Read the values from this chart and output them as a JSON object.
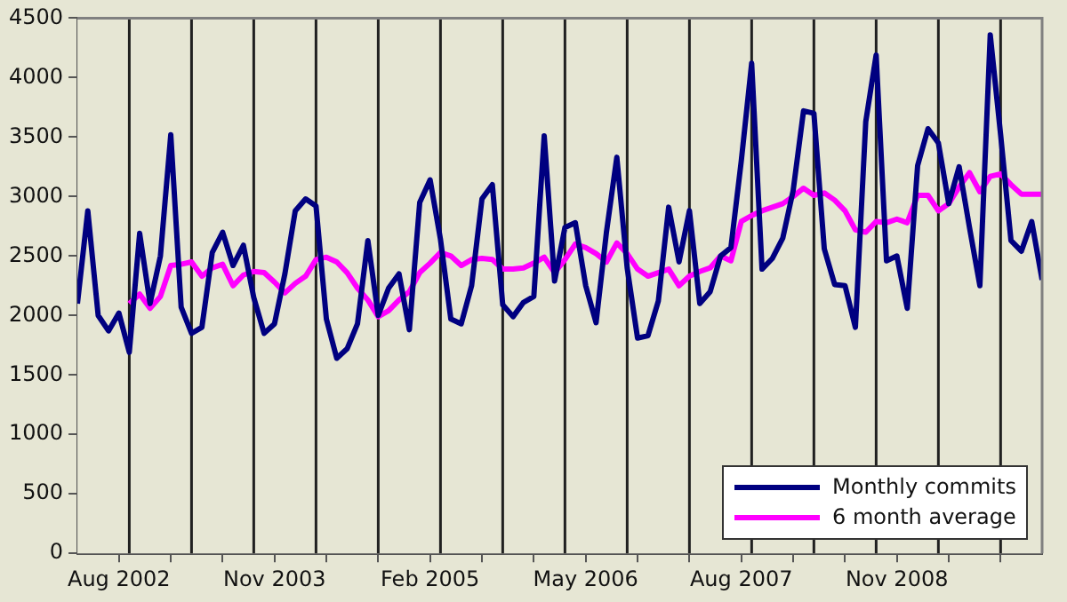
{
  "chart_data": {
    "type": "line",
    "xlim": [
      "2002-04",
      "2010-01"
    ],
    "xticks": [
      {
        "value": "2002-08",
        "label": "Aug 2002"
      },
      {
        "value": "2003-01",
        "label": null
      },
      {
        "value": "2003-06",
        "label": null
      },
      {
        "value": "2003-11",
        "label": "Nov 2003"
      },
      {
        "value": "2004-04",
        "label": null
      },
      {
        "value": "2004-09",
        "label": null
      },
      {
        "value": "2005-02",
        "label": "Feb 2005"
      },
      {
        "value": "2005-07",
        "label": null
      },
      {
        "value": "2005-12",
        "label": null
      },
      {
        "value": "2006-05",
        "label": "May 2006"
      },
      {
        "value": "2006-10",
        "label": null
      },
      {
        "value": "2007-03",
        "label": null
      },
      {
        "value": "2007-08",
        "label": "Aug 2007"
      },
      {
        "value": "2008-01",
        "label": null
      },
      {
        "value": "2008-06",
        "label": null
      },
      {
        "value": "2008-11",
        "label": "Nov 2008"
      },
      {
        "value": "2009-04",
        "label": null
      },
      {
        "value": "2009-09",
        "label": null
      }
    ],
    "ylim": [
      0,
      4500
    ],
    "yticks": [
      0,
      500,
      1000,
      1500,
      2000,
      2500,
      3000,
      3500,
      4000,
      4500
    ],
    "x": [
      "2002-04",
      "2002-05",
      "2002-06",
      "2002-07",
      "2002-08",
      "2002-09",
      "2002-10",
      "2002-11",
      "2002-12",
      "2003-01",
      "2003-02",
      "2003-03",
      "2003-04",
      "2003-05",
      "2003-06",
      "2003-07",
      "2003-08",
      "2003-09",
      "2003-10",
      "2003-11",
      "2003-12",
      "2004-01",
      "2004-02",
      "2004-03",
      "2004-04",
      "2004-05",
      "2004-06",
      "2004-07",
      "2004-08",
      "2004-09",
      "2004-10",
      "2004-11",
      "2004-12",
      "2005-01",
      "2005-02",
      "2005-03",
      "2005-04",
      "2005-05",
      "2005-06",
      "2005-07",
      "2005-08",
      "2005-09",
      "2005-10",
      "2005-11",
      "2005-12",
      "2006-01",
      "2006-02",
      "2006-03",
      "2006-04",
      "2006-05",
      "2006-06",
      "2006-07",
      "2006-08",
      "2006-09",
      "2006-10",
      "2006-11",
      "2006-12",
      "2007-01",
      "2007-02",
      "2007-03",
      "2007-04",
      "2007-05",
      "2007-06",
      "2007-07",
      "2007-08",
      "2007-09",
      "2007-10",
      "2007-11",
      "2007-12",
      "2008-01",
      "2008-02",
      "2008-03",
      "2008-04",
      "2008-05",
      "2008-06",
      "2008-07",
      "2008-08",
      "2008-09",
      "2008-10",
      "2008-11",
      "2008-12",
      "2009-01",
      "2009-02",
      "2009-03",
      "2009-04",
      "2009-05",
      "2009-06",
      "2009-07",
      "2009-08",
      "2009-09",
      "2009-10",
      "2009-11",
      "2009-12",
      "2010-01"
    ],
    "series": [
      {
        "name": "Monthly commits",
        "color": "#000080",
        "values": [
          2100,
          2880,
          2000,
          1870,
          2020,
          1690,
          2690,
          2100,
          2500,
          3520,
          2070,
          1850,
          1900,
          2530,
          2700,
          2420,
          2590,
          2150,
          1850,
          1930,
          2350,
          2880,
          2980,
          2920,
          1970,
          1640,
          1720,
          1930,
          2630,
          2000,
          2230,
          2350,
          1880,
          2950,
          3140,
          2640,
          1970,
          1930,
          2250,
          2980,
          3100,
          2090,
          1990,
          2110,
          2160,
          3510,
          2290,
          2740,
          2780,
          2250,
          1940,
          2700,
          3330,
          2400,
          1810,
          1830,
          2120,
          2910,
          2450,
          2880,
          2100,
          2200,
          2500,
          2570,
          3300,
          4120,
          2390,
          2480,
          2650,
          3050,
          3720,
          3700,
          2560,
          2260,
          2250,
          1900,
          3630,
          4190,
          2460,
          2500,
          2060,
          3260,
          3570,
          3450,
          2940,
          3250,
          2740,
          2250,
          4360,
          3520,
          2630,
          2540,
          2790,
          2300
        ]
      },
      {
        "name": "6 month average",
        "color": "#ff00ff",
        "values": [
          null,
          null,
          null,
          null,
          null,
          2100,
          2180,
          2060,
          2160,
          2420,
          2430,
          2450,
          2330,
          2400,
          2430,
          2250,
          2340,
          2370,
          2360,
          2280,
          2190,
          2270,
          2330,
          2470,
          2490,
          2450,
          2360,
          2230,
          2130,
          1990,
          2040,
          2130,
          2200,
          2360,
          2440,
          2530,
          2500,
          2420,
          2470,
          2480,
          2470,
          2390,
          2390,
          2400,
          2440,
          2490,
          2360,
          2470,
          2600,
          2570,
          2520,
          2450,
          2610,
          2520,
          2390,
          2330,
          2360,
          2390,
          2250,
          2330,
          2370,
          2400,
          2500,
          2460,
          2790,
          2840,
          2880,
          2910,
          2940,
          3000,
          3070,
          3010,
          3030,
          2970,
          2880,
          2720,
          2700,
          2790,
          2780,
          2810,
          2780,
          3010,
          3010,
          2880,
          2940,
          3080,
          3200,
          3040,
          3170,
          3190,
          3100,
          3020,
          3020,
          3020
        ]
      }
    ],
    "ref_lines": [
      {
        "axis": "x",
        "value": "2002-09",
        "color": "#202020"
      },
      {
        "axis": "x",
        "value": "2003-03",
        "color": "#202020"
      },
      {
        "axis": "x",
        "value": "2003-09",
        "color": "#202020"
      },
      {
        "axis": "x",
        "value": "2004-03",
        "color": "#202020"
      },
      {
        "axis": "x",
        "value": "2004-09",
        "color": "#202020"
      },
      {
        "axis": "x",
        "value": "2005-03",
        "color": "#202020"
      },
      {
        "axis": "x",
        "value": "2005-09",
        "color": "#202020"
      },
      {
        "axis": "x",
        "value": "2006-03",
        "color": "#202020"
      },
      {
        "axis": "x",
        "value": "2006-09",
        "color": "#202020"
      },
      {
        "axis": "x",
        "value": "2007-03",
        "color": "#202020"
      },
      {
        "axis": "x",
        "value": "2007-09",
        "color": "#202020"
      },
      {
        "axis": "x",
        "value": "2008-03",
        "color": "#202020"
      },
      {
        "axis": "x",
        "value": "2008-09",
        "color": "#202020"
      },
      {
        "axis": "x",
        "value": "2009-03",
        "color": "#202020"
      },
      {
        "axis": "x",
        "value": "2009-09",
        "color": "#202020"
      }
    ],
    "legend": "bottom right",
    "marker": "none",
    "line_style": "solid"
  }
}
